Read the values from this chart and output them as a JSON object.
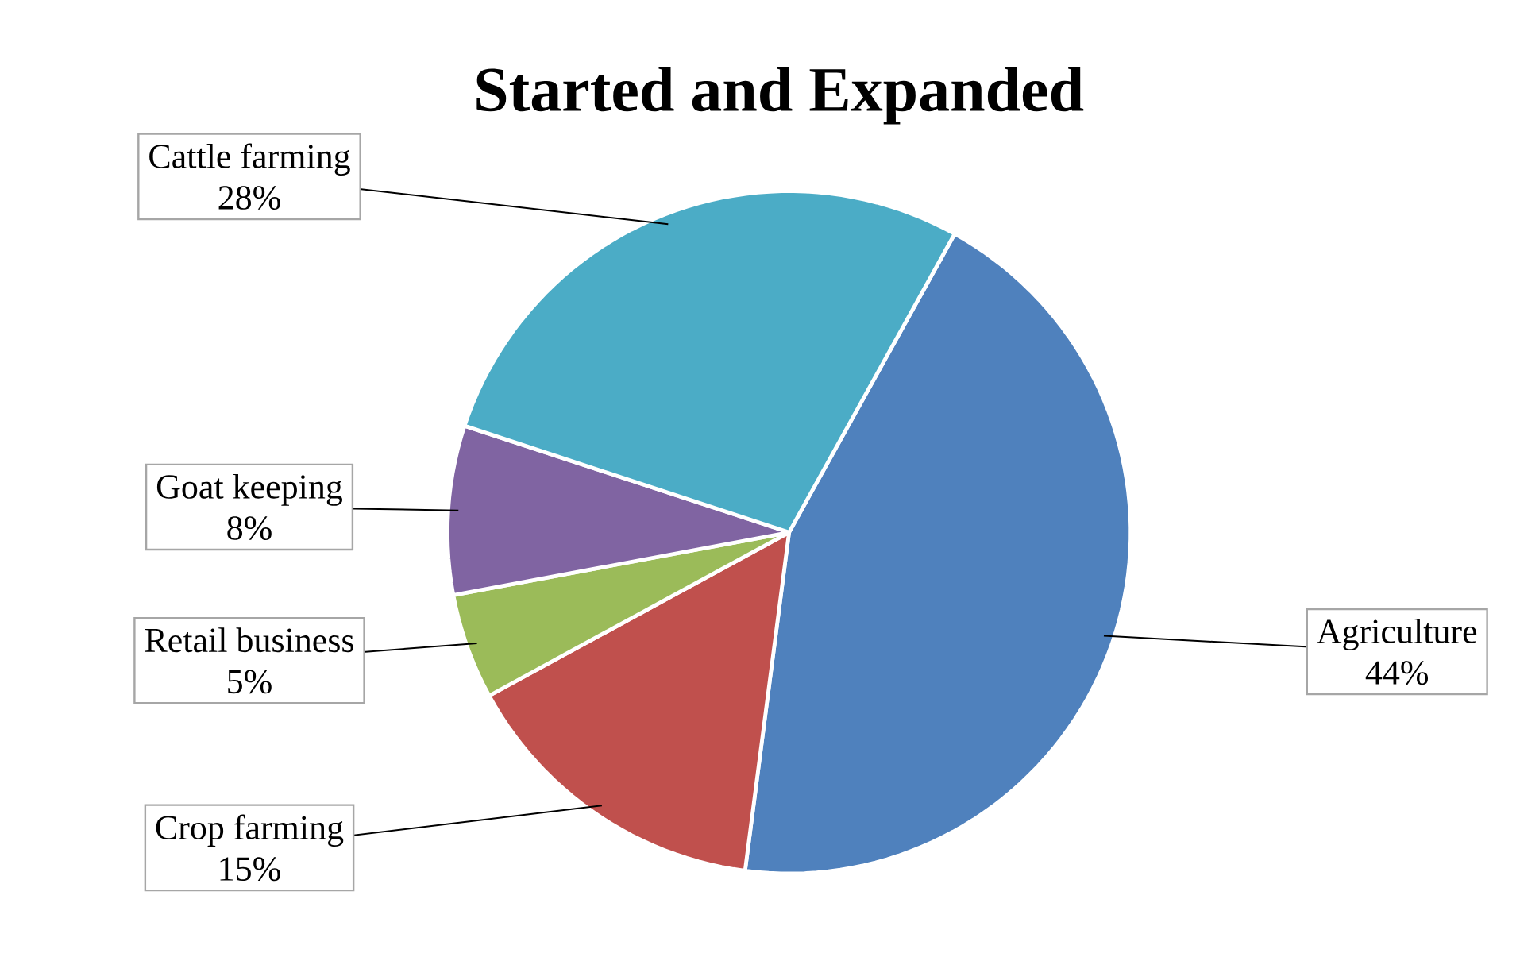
{
  "chart_data": {
    "type": "pie",
    "title": "Started and Expanded",
    "categories": [
      "Agriculture",
      "Crop farming",
      "Retail business",
      "Goat keeping",
      "Cattle farming"
    ],
    "values": [
      44,
      15,
      5,
      8,
      28
    ],
    "value_labels": [
      "44%",
      "15%",
      "5%",
      "8%",
      "28%"
    ],
    "colors": [
      "#4f81bd",
      "#c0504d",
      "#9bbb59",
      "#8064a2",
      "#4bacc6"
    ]
  }
}
